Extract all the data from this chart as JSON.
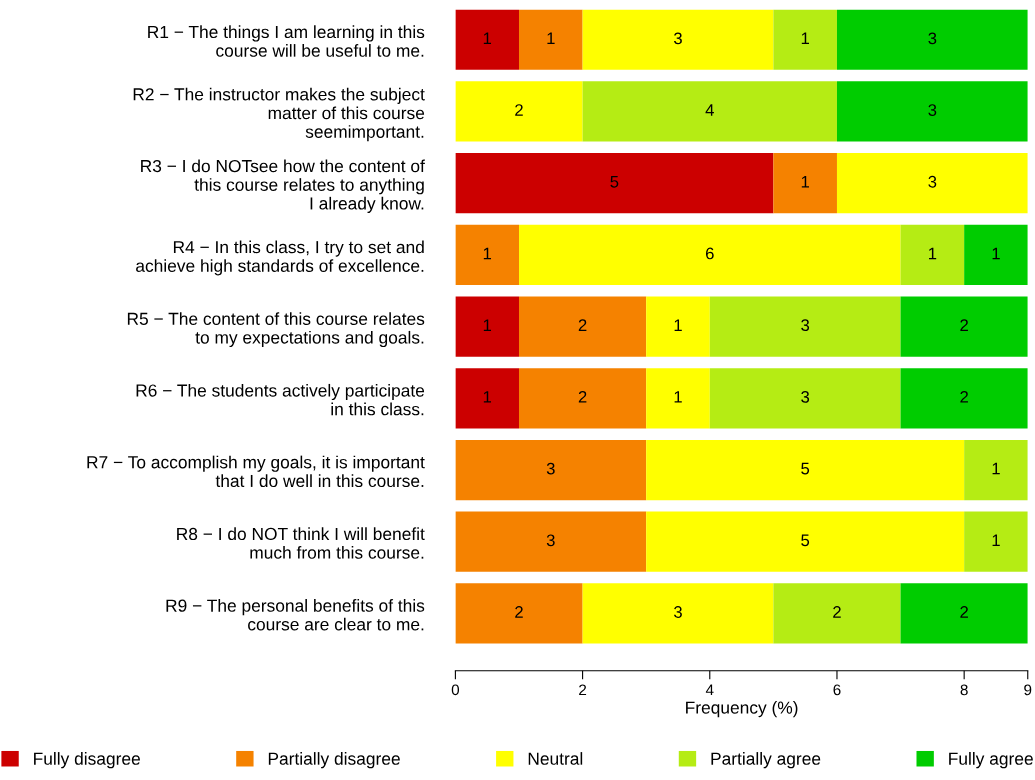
{
  "chart_data": {
    "type": "bar",
    "orientation": "horizontal",
    "stacked": true,
    "xlabel": "Frequency (%)",
    "categories": [
      "R1 − The things I am learning in this\ncourse will be useful to me.",
      "R2 − The instructor makes the subject\nmatter of this course\nseemimportant.",
      "R3 − I do NOTsee how the content of\nthis course relates to anything\nI already know.",
      "R4 − In this class, I try to set and\nachieve high standards of excellence.",
      "R5 − The content of this course relates\nto my expectations and goals.",
      "R6 − The students actively participate\nin this class.",
      "R7 − To accomplish my goals, it is important\nthat I do well in this course.",
      "R8 − I do NOT think I will benefit\nmuch from this course.",
      "R9 − The personal benefits of this\ncourse are clear to me."
    ],
    "series": [
      {
        "name": "Fully disagree",
        "color": "#cc0000",
        "values": [
          1,
          0,
          5,
          0,
          1,
          1,
          0,
          0,
          0
        ],
        "value_labels": [
          "1",
          null,
          "5",
          null,
          "1",
          "1",
          null,
          null,
          null
        ]
      },
      {
        "name": "Partially disagree",
        "color": "#f58200",
        "values": [
          1,
          0,
          1,
          1,
          2,
          2,
          3,
          3,
          2
        ],
        "value_labels": [
          "1",
          null,
          "1",
          "1",
          "2",
          "2",
          "3",
          "3",
          "2"
        ]
      },
      {
        "name": "Neutral",
        "color": "#ffff00",
        "values": [
          3,
          2,
          3,
          6,
          1,
          1,
          5,
          5,
          3
        ],
        "value_labels": [
          "3",
          "2",
          "3",
          "6",
          "1",
          "1",
          "5",
          "5",
          "3"
        ]
      },
      {
        "name": "Partially agree",
        "color": "#b5ec14",
        "values": [
          1,
          4,
          0,
          1,
          3,
          3,
          1,
          1,
          2
        ],
        "value_labels": [
          "1",
          "4",
          null,
          "1",
          "3",
          "3",
          "1",
          "1",
          "2"
        ]
      },
      {
        "name": "Fully agree",
        "color": "#00cc00",
        "values": [
          3,
          3,
          0,
          1,
          2,
          2,
          0,
          0,
          2
        ],
        "value_labels": [
          "3",
          "3",
          null,
          "1",
          "2",
          "2",
          null,
          null,
          "2"
        ]
      }
    ],
    "xlim": [
      0,
      9
    ],
    "xticks": [
      0,
      2,
      4,
      6,
      8,
      9
    ],
    "legend": "bottom",
    "grid": false
  }
}
